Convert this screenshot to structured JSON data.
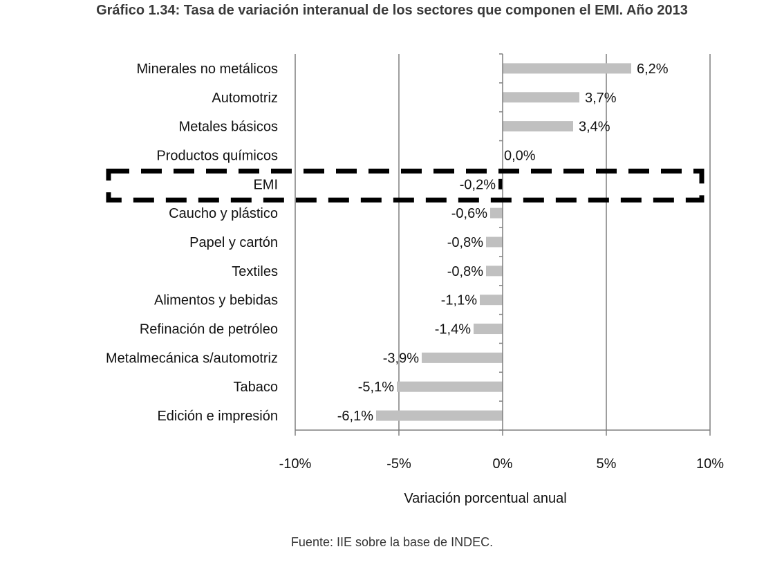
{
  "title": "Gráfico 1.34: Tasa de variación interanual de los sectores que componen el EMI. Año 2013",
  "source": "Fuente: IIE sobre la base de INDEC.",
  "chart_data": {
    "type": "bar",
    "orientation": "horizontal",
    "categories": [
      "Minerales no metálicos",
      "Automotriz",
      "Metales básicos",
      "Productos químicos",
      "EMI",
      "Caucho y plástico",
      "Papel y cartón",
      "Textiles",
      "Alimentos y bebidas",
      "Refinación de petróleo",
      "Metalmecánica s/automotriz",
      "Tabaco",
      "Edición e impresión"
    ],
    "values": [
      6.2,
      3.7,
      3.4,
      0.0,
      -0.2,
      -0.6,
      -0.8,
      -0.8,
      -1.1,
      -1.4,
      -3.9,
      -5.1,
      -6.1
    ],
    "data_labels": [
      "6,2%",
      "3,7%",
      "3,4%",
      "0,0%",
      "-0,2%",
      "-0,6%",
      "-0,8%",
      "-0,8%",
      "-1,1%",
      "-1,4%",
      "-3,9%",
      "-5,1%",
      "-6,1%"
    ],
    "xlim": [
      -10,
      10
    ],
    "xticks": [
      -10,
      -5,
      0,
      5,
      10
    ],
    "xtick_labels": [
      "-10%",
      "-5%",
      "0%",
      "5%",
      "10%"
    ],
    "xlabel": "Variación porcentual anual",
    "ylabel": "",
    "grid": "vertical",
    "highlight": "EMI",
    "colors": {
      "bar": "#c0c0c0",
      "highlight_bar": "#000000",
      "grid": "#7f7f7f",
      "box": "#000000"
    }
  }
}
